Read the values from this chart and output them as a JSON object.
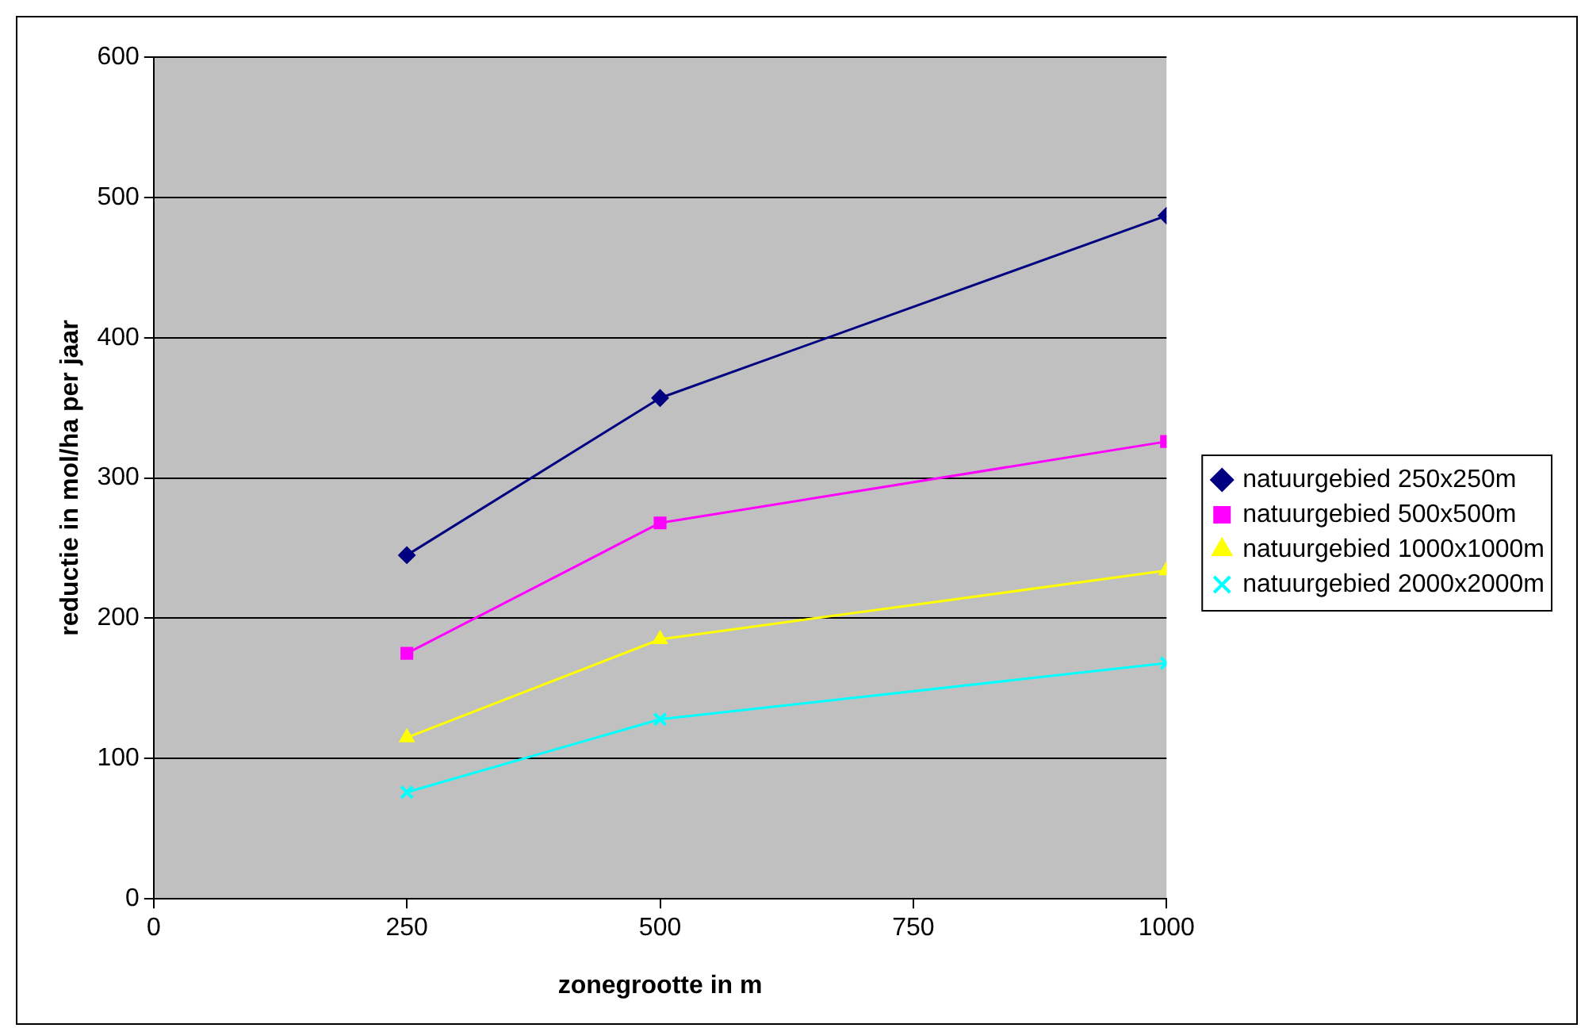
{
  "chart_data": {
    "type": "line",
    "xlabel": "zonegrootte in m",
    "ylabel": "reductie in mol/ha per jaar",
    "x": [
      250,
      500,
      1000
    ],
    "series": [
      {
        "name": "natuurgebied 250x250m",
        "color": "#000080",
        "marker": "diamond",
        "values": [
          245,
          357,
          487
        ]
      },
      {
        "name": "natuurgebied 500x500m",
        "color": "#ff00ff",
        "marker": "square",
        "values": [
          175,
          268,
          326
        ]
      },
      {
        "name": "natuurgebied 1000x1000m",
        "color": "#ffff00",
        "marker": "triangle",
        "values": [
          115,
          185,
          234
        ]
      },
      {
        "name": "natuurgebied 2000x2000m",
        "color": "#00ffff",
        "marker": "cross",
        "values": [
          76,
          128,
          168
        ]
      }
    ],
    "xlim": [
      0,
      1000
    ],
    "xticks": [
      0,
      250,
      500,
      750,
      1000
    ],
    "ylim": [
      0,
      600
    ],
    "yticks": [
      0,
      100,
      200,
      300,
      400,
      500,
      600
    ],
    "grid": "y",
    "legend": "right"
  }
}
